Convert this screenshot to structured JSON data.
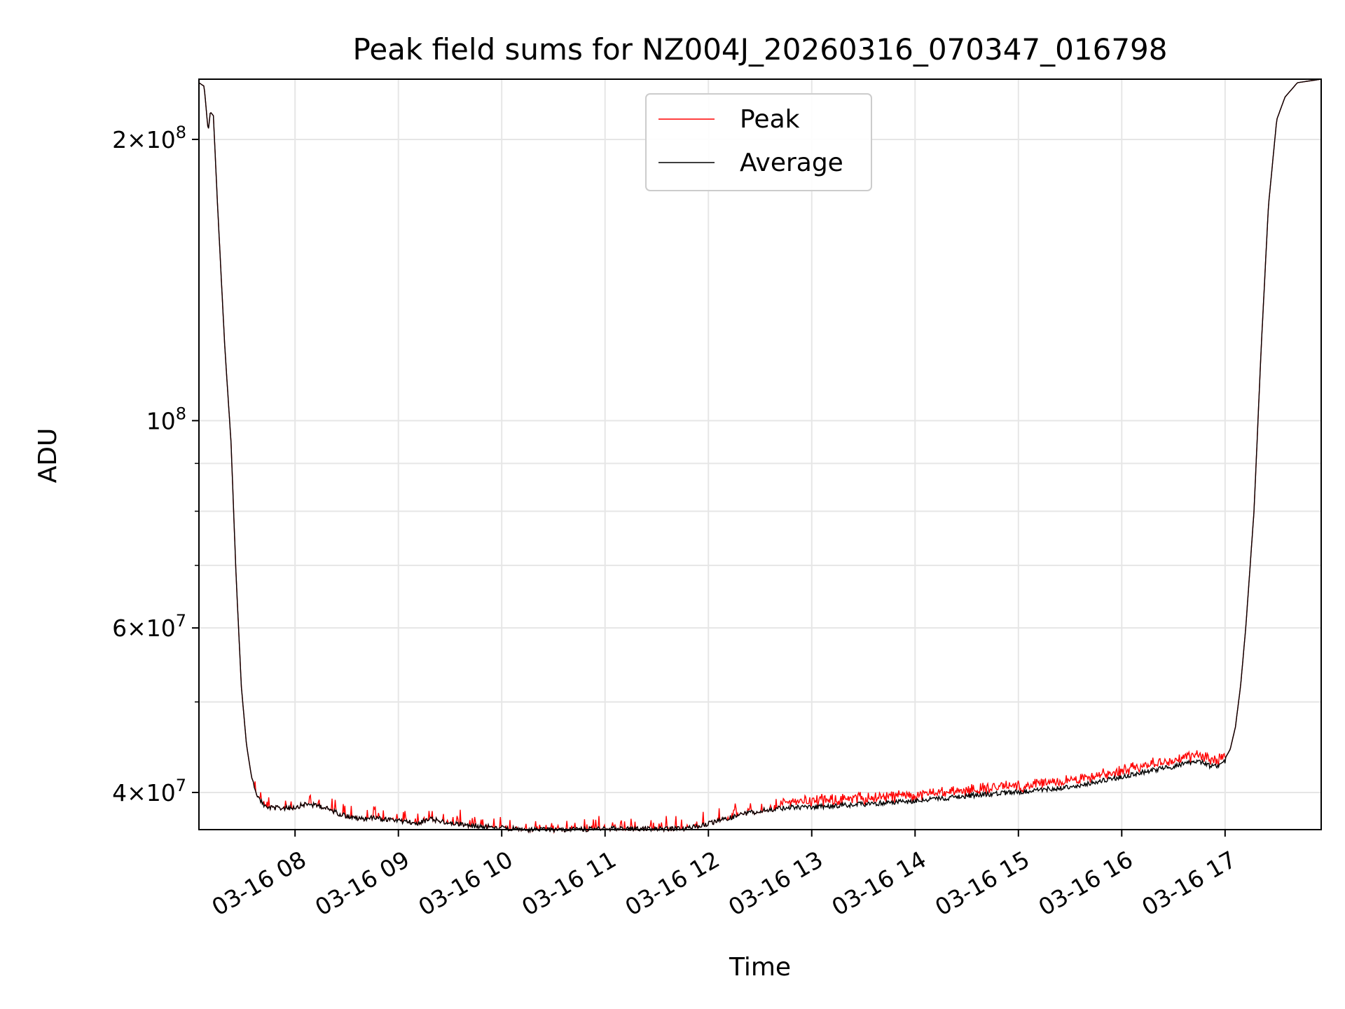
{
  "chart_data": {
    "type": "line",
    "title": "Peak field sums for NZ004J_20260316_070347_016798",
    "xlabel": "Time",
    "ylabel": "ADU",
    "yscale": "log",
    "xlim": [
      7.07,
      17.93
    ],
    "ylim": [
      36500000,
      232000000
    ],
    "grid": true,
    "legend_position": "top-center",
    "x_ticks": [
      {
        "value": 8,
        "label": "03-16 08"
      },
      {
        "value": 9,
        "label": "03-16 09"
      },
      {
        "value": 10,
        "label": "03-16 10"
      },
      {
        "value": 11,
        "label": "03-16 11"
      },
      {
        "value": 12,
        "label": "03-16 12"
      },
      {
        "value": 13,
        "label": "03-16 13"
      },
      {
        "value": 14,
        "label": "03-16 14"
      },
      {
        "value": 15,
        "label": "03-16 15"
      },
      {
        "value": 16,
        "label": "03-16 16"
      },
      {
        "value": 17,
        "label": "03-16 17"
      }
    ],
    "y_major_ticks": [
      {
        "value": 40000000,
        "mantissa": "4",
        "exponent": "7"
      },
      {
        "value": 60000000,
        "mantissa": "6",
        "exponent": "7"
      },
      {
        "value": 100000000,
        "mantissa": "",
        "exponent": "8"
      },
      {
        "value": 200000000,
        "mantissa": "2",
        "exponent": "8"
      }
    ],
    "y_minor_ticks": [
      50000000,
      70000000,
      80000000,
      90000000
    ],
    "series": [
      {
        "name": "Peak",
        "color": "#ff0000",
        "spikes": true
      },
      {
        "name": "Average",
        "color": "#000000",
        "spikes": false
      }
    ],
    "average_profile": [
      [
        7.07,
        230000000
      ],
      [
        7.12,
        228000000
      ],
      [
        7.16,
        204000000
      ],
      [
        7.18,
        214000000
      ],
      [
        7.21,
        212000000
      ],
      [
        7.25,
        170000000
      ],
      [
        7.32,
        120000000
      ],
      [
        7.38,
        95000000
      ],
      [
        7.43,
        68000000
      ],
      [
        7.48,
        52000000
      ],
      [
        7.53,
        45000000
      ],
      [
        7.58,
        41500000
      ],
      [
        7.65,
        39600000
      ],
      [
        7.72,
        38800000
      ],
      [
        7.85,
        38700000
      ],
      [
        8.0,
        38800000
      ],
      [
        8.1,
        39100000
      ],
      [
        8.25,
        38900000
      ],
      [
        8.45,
        38100000
      ],
      [
        8.6,
        37700000
      ],
      [
        8.75,
        37800000
      ],
      [
        9.0,
        37500000
      ],
      [
        9.2,
        37300000
      ],
      [
        9.3,
        37700000
      ],
      [
        9.45,
        37400000
      ],
      [
        9.7,
        37100000
      ],
      [
        10.0,
        36900000
      ],
      [
        10.2,
        36700000
      ],
      [
        10.5,
        36700000
      ],
      [
        10.8,
        36750000
      ],
      [
        11.0,
        36800000
      ],
      [
        11.5,
        36800000
      ],
      [
        11.75,
        36800000
      ],
      [
        11.9,
        37000000
      ],
      [
        12.1,
        37500000
      ],
      [
        12.35,
        38200000
      ],
      [
        12.6,
        38600000
      ],
      [
        12.8,
        38800000
      ],
      [
        13.0,
        38800000
      ],
      [
        13.5,
        39100000
      ],
      [
        14.0,
        39400000
      ],
      [
        14.5,
        39900000
      ],
      [
        15.0,
        40300000
      ],
      [
        15.5,
        40800000
      ],
      [
        15.9,
        41600000
      ],
      [
        16.2,
        42300000
      ],
      [
        16.5,
        42900000
      ],
      [
        16.72,
        43500000
      ],
      [
        16.8,
        43300000
      ],
      [
        16.86,
        42900000
      ],
      [
        16.95,
        43000000
      ],
      [
        17.0,
        43500000
      ],
      [
        17.05,
        44500000
      ],
      [
        17.1,
        47000000
      ],
      [
        17.15,
        52000000
      ],
      [
        17.2,
        60000000
      ],
      [
        17.28,
        80000000
      ],
      [
        17.35,
        120000000
      ],
      [
        17.42,
        170000000
      ],
      [
        17.5,
        210000000
      ],
      [
        17.58,
        222000000
      ],
      [
        17.7,
        230000000
      ],
      [
        17.93,
        232000000
      ]
    ]
  }
}
